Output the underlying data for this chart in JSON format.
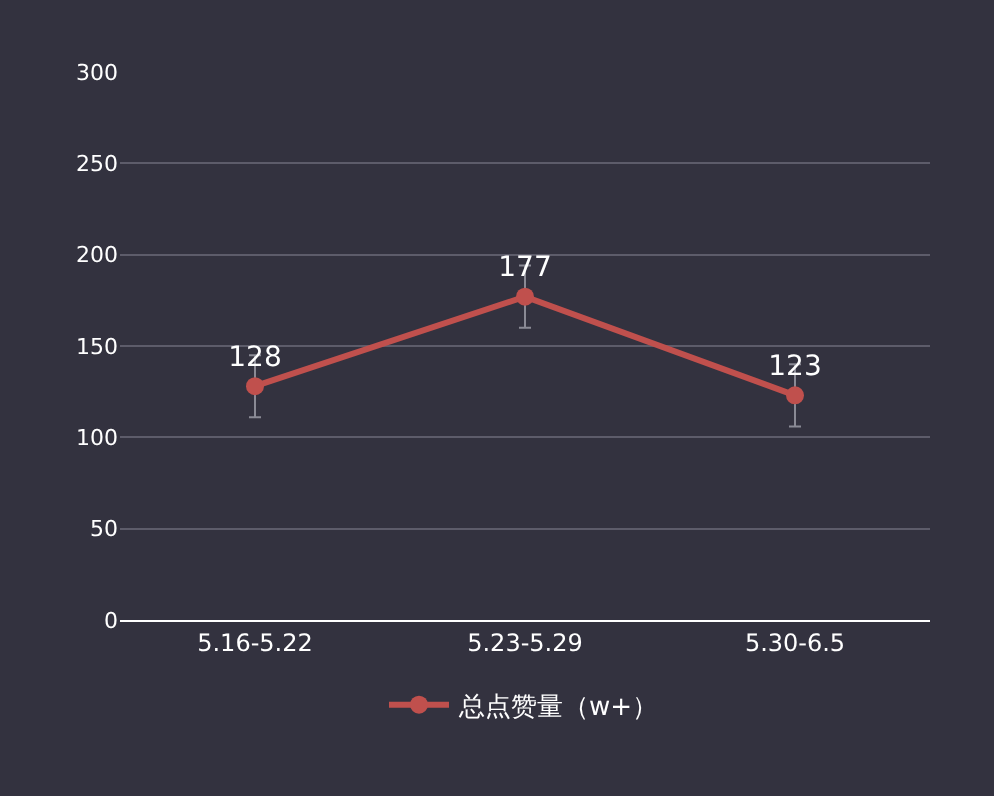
{
  "chart_data": {
    "type": "line",
    "categories": [
      "5.16-5.22",
      "5.23-5.29",
      "5.30-6.5"
    ],
    "series": [
      {
        "name": "总点赞量（w+）",
        "color": "#c0504d",
        "values": [
          128,
          177,
          123
        ],
        "errors": [
          17,
          17,
          17
        ]
      }
    ],
    "ylim": [
      0,
      300
    ],
    "yticks": [
      0,
      50,
      100,
      150,
      200,
      250,
      300
    ],
    "grid": "y",
    "legend": "bottom",
    "marker": "circle",
    "line_style": "solid",
    "data_labels": true
  }
}
